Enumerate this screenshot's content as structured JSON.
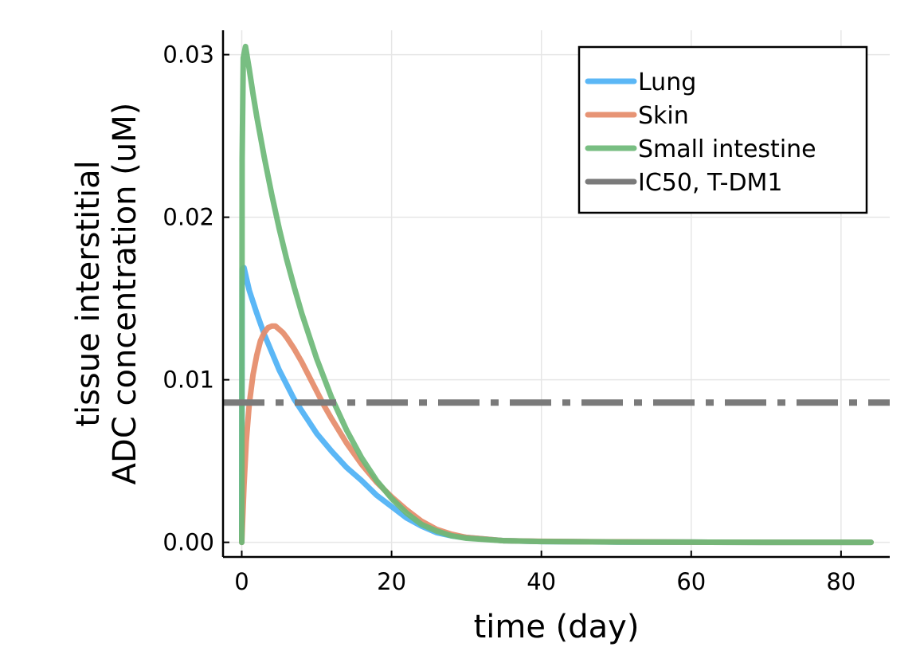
{
  "chart_data": {
    "type": "line",
    "title": "",
    "xlabel": "time (day)",
    "ylabel": [
      "tissue interstitial",
      "ADC concentration (uM)"
    ],
    "xlim": [
      -2.5,
      86.5
    ],
    "ylim": [
      -0.0009,
      0.0315
    ],
    "xticks": [
      0,
      20,
      40,
      60,
      80
    ],
    "xtick_labels": [
      "0",
      "20",
      "40",
      "60",
      "80"
    ],
    "yticks": [
      0.0,
      0.01,
      0.02,
      0.03
    ],
    "ytick_labels": [
      "0.00",
      "0.01",
      "0.02",
      "0.03"
    ],
    "grid": true,
    "legend_position": "top-right",
    "series": [
      {
        "name": "Lung",
        "color": "#4db1f5",
        "style": "solid",
        "x": [
          0,
          0.05,
          0.3,
          1,
          2,
          3,
          4,
          5,
          6,
          7,
          8,
          10,
          12,
          14,
          16,
          18,
          20,
          22,
          24,
          26,
          28,
          30,
          35,
          40,
          50,
          60,
          70,
          84
        ],
        "y": [
          0,
          0.0168,
          0.0169,
          0.0155,
          0.0141,
          0.0128,
          0.0117,
          0.0106,
          0.0097,
          0.0088,
          0.0081,
          0.0067,
          0.0056,
          0.0046,
          0.0038,
          0.0029,
          0.0022,
          0.0015,
          0.001,
          0.0006,
          0.0004,
          0.0003,
          0.0001,
          5e-05,
          2e-05,
          1e-05,
          0,
          0
        ]
      },
      {
        "name": "Skin",
        "color": "#e58b69",
        "style": "solid",
        "x": [
          0,
          0.3,
          0.6,
          1,
          1.5,
          2,
          2.5,
          3,
          3.5,
          4,
          4.5,
          5,
          5.5,
          6,
          7,
          8,
          9,
          10,
          11,
          12,
          14,
          16,
          18,
          20,
          22,
          24,
          26,
          28,
          30,
          35,
          40,
          50,
          60,
          70,
          84
        ],
        "y": [
          0,
          0.0035,
          0.0062,
          0.0085,
          0.0103,
          0.0115,
          0.0124,
          0.0129,
          0.0132,
          0.0133,
          0.0133,
          0.0131,
          0.0129,
          0.0126,
          0.0119,
          0.0111,
          0.0102,
          0.0093,
          0.0084,
          0.0076,
          0.0061,
          0.0048,
          0.0037,
          0.0028,
          0.002,
          0.0013,
          0.0008,
          0.0005,
          0.0003,
          0.0001,
          6e-05,
          3e-05,
          1e-05,
          0,
          0
        ]
      },
      {
        "name": "Small intestine",
        "color": "#6cb877",
        "style": "solid",
        "x": [
          0,
          0.05,
          0.2,
          0.5,
          1,
          1.5,
          2,
          3,
          4,
          5,
          6,
          7,
          8,
          9,
          10,
          12,
          14,
          16,
          18,
          20,
          22,
          24,
          26,
          28,
          30,
          35,
          40,
          50,
          60,
          70,
          84
        ],
        "y": [
          0,
          0.0235,
          0.0298,
          0.0305,
          0.0291,
          0.0276,
          0.0262,
          0.0237,
          0.0214,
          0.0193,
          0.0174,
          0.0157,
          0.0141,
          0.0127,
          0.0113,
          0.0089,
          0.0069,
          0.0052,
          0.0038,
          0.0027,
          0.0018,
          0.0011,
          0.0007,
          0.0004,
          0.00025,
          0.0001,
          5e-05,
          2e-05,
          1e-05,
          0,
          0
        ]
      },
      {
        "name": "IC50, T-DM1",
        "color": "#7a7a7a",
        "style": "dashdot",
        "x": [
          -2.5,
          86.5
        ],
        "y": [
          0.0086,
          0.0086
        ]
      }
    ]
  }
}
